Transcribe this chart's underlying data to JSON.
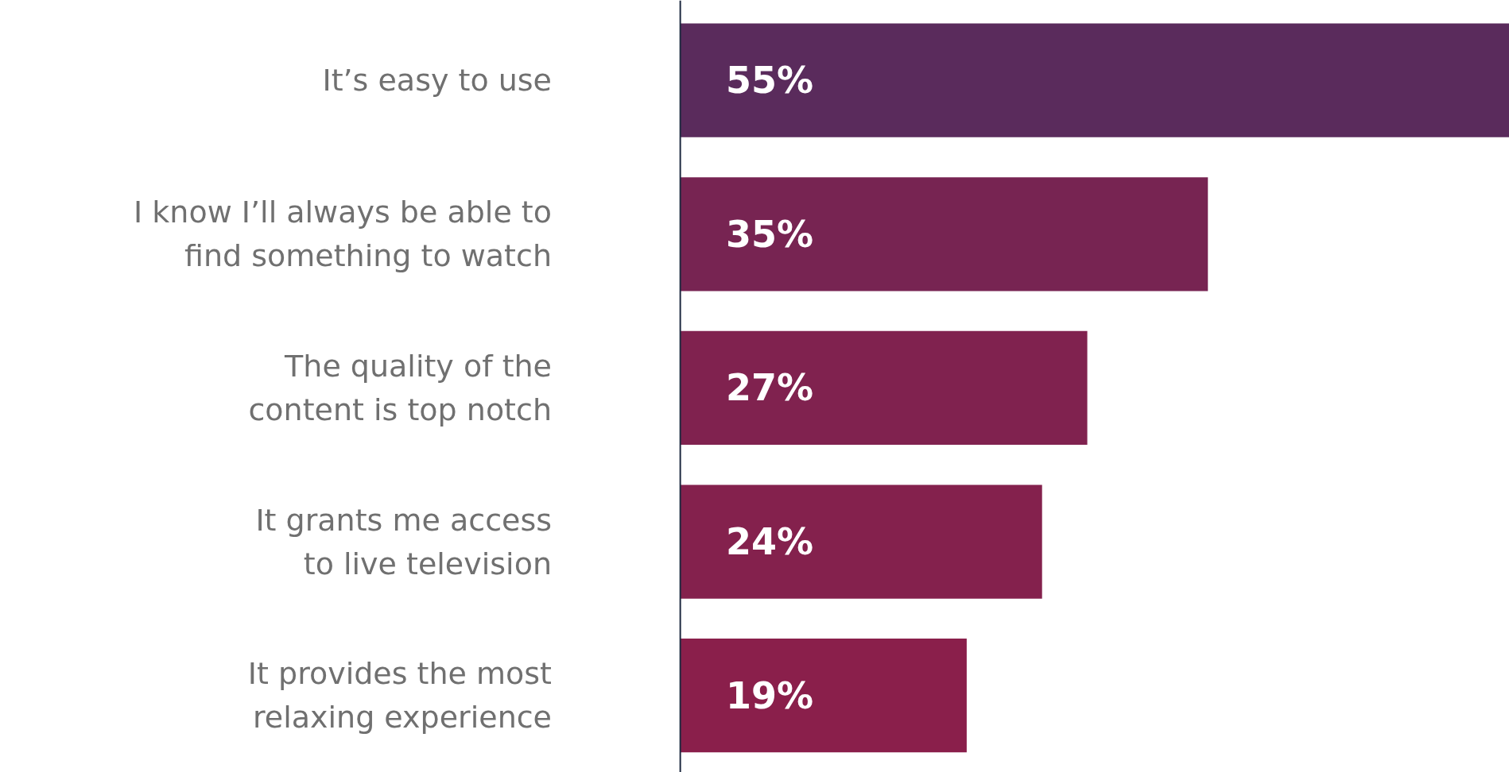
{
  "chart_data": {
    "type": "bar",
    "orientation": "horizontal",
    "categories": [
      "It’s easy to use",
      "I know I’ll always be able to\nfind something to watch",
      "The quality of the\ncontent is top notch",
      "It grants me access\nto live television",
      "It provides the most\nrelaxing experience"
    ],
    "values": [
      55,
      35,
      27,
      24,
      19
    ],
    "colors": [
      "#5a2b5c",
      "#772452",
      "#80224f",
      "#84214d",
      "#8a1f4b"
    ],
    "value_labels": [
      "55%",
      "35%",
      "27%",
      "24%",
      "19%"
    ],
    "grid": false
  }
}
